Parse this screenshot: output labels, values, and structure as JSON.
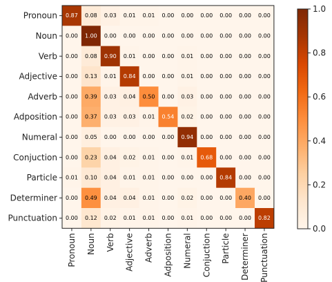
{
  "chart_data": {
    "type": "heatmap",
    "rows": [
      "Pronoun",
      "Noun",
      "Verb",
      "Adjective",
      "Adverb",
      "Adposition",
      "Numeral",
      "Conjuction",
      "Particle",
      "Determiner",
      "Punctuation"
    ],
    "columns": [
      "Pronoun",
      "Noun",
      "Verb",
      "Adjective",
      "Adverb",
      "Adposition",
      "Numeral",
      "Conjuction",
      "Particle",
      "Determiner",
      "Punctuation"
    ],
    "values": [
      [
        0.87,
        0.08,
        0.03,
        0.01,
        0.01,
        0.0,
        0.0,
        0.0,
        0.0,
        0.0,
        0.0
      ],
      [
        0.0,
        1.0,
        0.0,
        0.0,
        0.0,
        0.0,
        0.0,
        0.0,
        0.0,
        0.0,
        0.0
      ],
      [
        0.0,
        0.08,
        0.9,
        0.01,
        0.0,
        0.0,
        0.01,
        0.0,
        0.0,
        0.0,
        0.0
      ],
      [
        0.0,
        0.13,
        0.01,
        0.84,
        0.0,
        0.0,
        0.01,
        0.0,
        0.0,
        0.0,
        0.0
      ],
      [
        0.0,
        0.39,
        0.03,
        0.04,
        0.5,
        0.0,
        0.03,
        0.0,
        0.0,
        0.0,
        0.0
      ],
      [
        0.0,
        0.37,
        0.03,
        0.03,
        0.01,
        0.54,
        0.02,
        0.0,
        0.0,
        0.0,
        0.0
      ],
      [
        0.0,
        0.05,
        0.0,
        0.0,
        0.0,
        0.0,
        0.94,
        0.0,
        0.0,
        0.0,
        0.0
      ],
      [
        0.0,
        0.23,
        0.04,
        0.02,
        0.01,
        0.0,
        0.01,
        0.68,
        0.0,
        0.0,
        0.0
      ],
      [
        0.01,
        0.1,
        0.04,
        0.01,
        0.01,
        0.0,
        0.0,
        0.0,
        0.84,
        0.0,
        0.0
      ],
      [
        0.0,
        0.49,
        0.04,
        0.04,
        0.01,
        0.0,
        0.02,
        0.0,
        0.0,
        0.4,
        0.0
      ],
      [
        0.0,
        0.12,
        0.02,
        0.01,
        0.01,
        0.0,
        0.01,
        0.0,
        0.0,
        0.0,
        0.82
      ]
    ],
    "value_format": "2 decimals",
    "colorscale": "Oranges",
    "colorbar": {
      "range": [
        0.0,
        1.0
      ],
      "ticks": [
        "0.0",
        "0.2",
        "0.4",
        "0.6",
        "0.8",
        "1.0"
      ]
    },
    "title": "",
    "xlabel": "",
    "ylabel": ""
  }
}
